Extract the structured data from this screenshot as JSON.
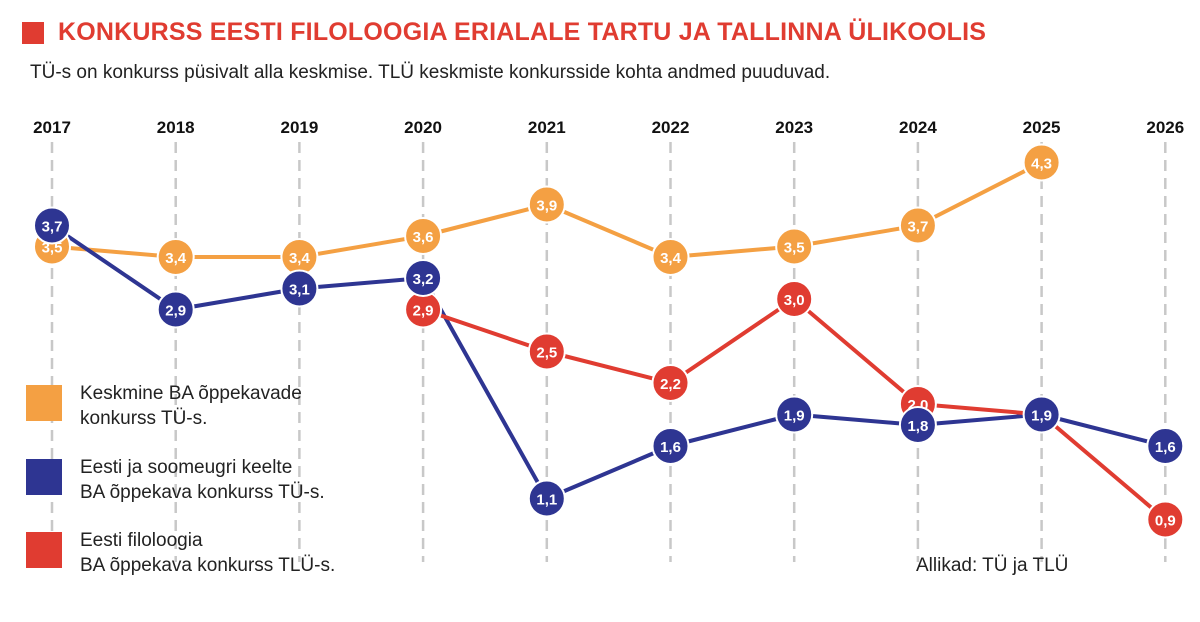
{
  "title": "KONKURSS EESTI FILOLOOGIA ERIALALE TARTU JA TALLINNA ÜLIKOOLIS",
  "subtitle": "TÜ-s on konkurss püsivalt alla keskmise. TLÜ keskmiste konkursside kohta andmed puuduvad.",
  "source": "Allikad: TÜ ja TLÜ",
  "colors": {
    "accent": "#e03c31",
    "orange": "#f4a043",
    "blue": "#2e3592",
    "red": "#e03c31"
  },
  "legend": [
    {
      "label": "Keskmine BA õppekavade\nkonkurss TÜ-s.",
      "color": "#f4a043"
    },
    {
      "label": "Eesti ja soomeugri keelte\nBA õppekava konkurss TÜ-s.",
      "color": "#2e3592"
    },
    {
      "label": "Eesti filoloogia\nBA õppekava konkurss TLÜ-s.",
      "color": "#e03c31"
    }
  ],
  "chart_data": {
    "type": "line",
    "x": [
      "2017",
      "2018",
      "2019",
      "2020",
      "2021",
      "2022",
      "2023",
      "2024",
      "2025",
      "2026"
    ],
    "grid": "vertical dashed",
    "legend_position": "left",
    "series": [
      {
        "color": "#f4a043",
        "values": [
          3.5,
          3.4,
          3.4,
          3.6,
          3.9,
          3.4,
          3.5,
          3.7,
          4.3,
          null
        ],
        "labels": [
          "3,5",
          "3,4",
          "3,4",
          "3,6",
          "3,9",
          "3,4",
          "3,5",
          "3,7",
          "4,3",
          null
        ]
      },
      {
        "color": "#2e3592",
        "values": [
          3.7,
          2.9,
          3.1,
          3.2,
          1.1,
          1.6,
          1.9,
          1.8,
          1.9,
          1.6
        ],
        "labels": [
          "3,7",
          "2,9",
          "3,1",
          "3,2",
          "1,1",
          "1,6",
          "1,9",
          "1,8",
          "1,9",
          "1,6"
        ]
      },
      {
        "color": "#e03c31",
        "values": [
          null,
          null,
          null,
          2.9,
          2.5,
          2.2,
          3.0,
          2.0,
          1.9,
          0.9
        ],
        "labels": [
          null,
          null,
          null,
          "2,9",
          "2,5",
          "2,2",
          "3,0",
          "2,0",
          null,
          "0,9"
        ]
      }
    ]
  }
}
